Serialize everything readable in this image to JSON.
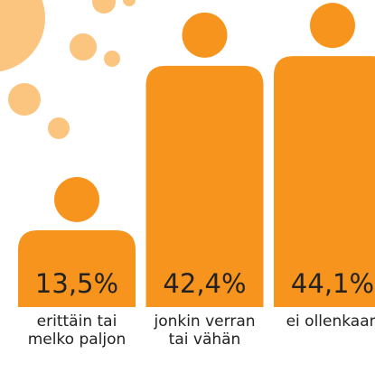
{
  "chart_data": {
    "type": "bar",
    "categories": [
      "erittäin tai melko paljon",
      "jonkin verran tai vähän",
      "ei ollenkaan"
    ],
    "values": [
      13.5,
      42.4,
      44.1
    ],
    "value_labels": [
      "13,5%",
      "42,4%",
      "44,1%"
    ],
    "color": "#f7941d"
  }
}
